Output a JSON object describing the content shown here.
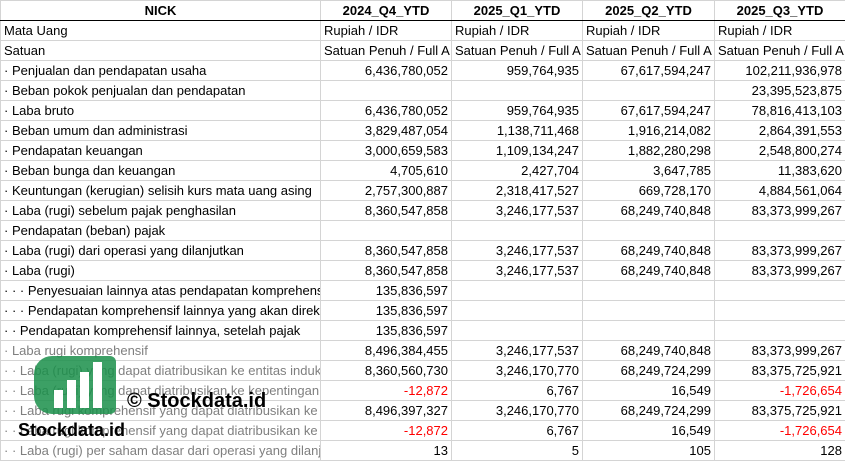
{
  "headers": [
    "NICK",
    "2024_Q4_YTD",
    "2025_Q1_YTD",
    "2025_Q2_YTD",
    "2025_Q3_YTD"
  ],
  "rows": [
    {
      "label": "Mata Uang",
      "values": [
        "Rupiah / IDR",
        "Rupiah / IDR",
        "Rupiah / IDR",
        "Rupiah / IDR"
      ],
      "text": true
    },
    {
      "label": "Satuan",
      "values": [
        "Satuan Penuh / Full A",
        "Satuan Penuh / Full A",
        "Satuan Penuh / Full A",
        "Satuan Penuh / Full A"
      ],
      "text": true
    },
    {
      "label": "· Penjualan dan pendapatan usaha",
      "values": [
        "6,436,780,052",
        "959,764,935",
        "67,617,594,247",
        "102,211,936,978"
      ]
    },
    {
      "label": "· Beban pokok penjualan dan pendapatan",
      "values": [
        "",
        "",
        "",
        "23,395,523,875"
      ]
    },
    {
      "label": "· Laba bruto",
      "values": [
        "6,436,780,052",
        "959,764,935",
        "67,617,594,247",
        "78,816,413,103"
      ]
    },
    {
      "label": "· Beban umum dan administrasi",
      "values": [
        "3,829,487,054",
        "1,138,711,468",
        "1,916,214,082",
        "2,864,391,553"
      ]
    },
    {
      "label": "· Pendapatan keuangan",
      "values": [
        "3,000,659,583",
        "1,109,134,247",
        "1,882,280,298",
        "2,548,800,274"
      ]
    },
    {
      "label": "· Beban bunga dan keuangan",
      "values": [
        "4,705,610",
        "2,427,704",
        "3,647,785",
        "11,383,620"
      ]
    },
    {
      "label": "· Keuntungan (kerugian) selisih kurs mata uang asing",
      "values": [
        "2,757,300,887",
        "2,318,417,527",
        "669,728,170",
        "4,884,561,064"
      ]
    },
    {
      "label": "· Laba (rugi) sebelum pajak penghasilan",
      "values": [
        "8,360,547,858",
        "3,246,177,537",
        "68,249,740,848",
        "83,373,999,267"
      ]
    },
    {
      "label": "· Pendapatan (beban) pajak",
      "values": [
        "",
        "",
        "",
        ""
      ]
    },
    {
      "label": "· Laba (rugi) dari operasi yang dilanjutkan",
      "values": [
        "8,360,547,858",
        "3,246,177,537",
        "68,249,740,848",
        "83,373,999,267"
      ]
    },
    {
      "label": "· Laba (rugi)",
      "values": [
        "8,360,547,858",
        "3,246,177,537",
        "68,249,740,848",
        "83,373,999,267"
      ]
    },
    {
      "label": "· · · Penyesuaian lainnya atas pendapatan komprehensif",
      "values": [
        "135,836,597",
        "",
        "",
        ""
      ]
    },
    {
      "label": "· · · Pendapatan komprehensif lainnya yang akan direklasifikasi",
      "values": [
        "135,836,597",
        "",
        "",
        ""
      ]
    },
    {
      "label": "· · Pendapatan komprehensif lainnya, setelah pajak",
      "values": [
        "135,836,597",
        "",
        "",
        ""
      ]
    },
    {
      "label": "· Laba rugi komprehensif",
      "values": [
        "8,496,384,455",
        "3,246,177,537",
        "68,249,740,848",
        "83,373,999,267"
      ],
      "faded": true
    },
    {
      "label": "· · Laba (rugi) yang dapat diatribusikan ke entitas induk",
      "values": [
        "8,360,560,730",
        "3,246,170,770",
        "68,249,724,299",
        "83,375,725,921"
      ],
      "faded": true
    },
    {
      "label": "· · Laba (rugi) yang dapat diatribusikan ke kepentingan non pengendali",
      "values": [
        "-12,872",
        "6,767",
        "16,549",
        "-1,726,654"
      ],
      "faded": true
    },
    {
      "label": "· · Laba rugi komprehensif yang dapat diatribusikan ke entitas induk",
      "values": [
        "8,496,397,327",
        "3,246,170,770",
        "68,249,724,299",
        "83,375,725,921"
      ],
      "faded": true
    },
    {
      "label": "· · Laba rugi komprehensif yang dapat diatribusikan ke kepentingan non pengendali",
      "values": [
        "-12,872",
        "6,767",
        "16,549",
        "-1,726,654"
      ],
      "faded": true
    },
    {
      "label": "· · Laba (rugi) per saham dasar dari operasi yang dilanjutkan",
      "values": [
        "13",
        "5",
        "105",
        "128"
      ],
      "faded": true
    }
  ],
  "watermark": {
    "line1": "© Stockdata.id",
    "line2": "Stockdata.id"
  },
  "colors": {
    "negative": "#ff0000",
    "logo": "#1a8f4a"
  }
}
